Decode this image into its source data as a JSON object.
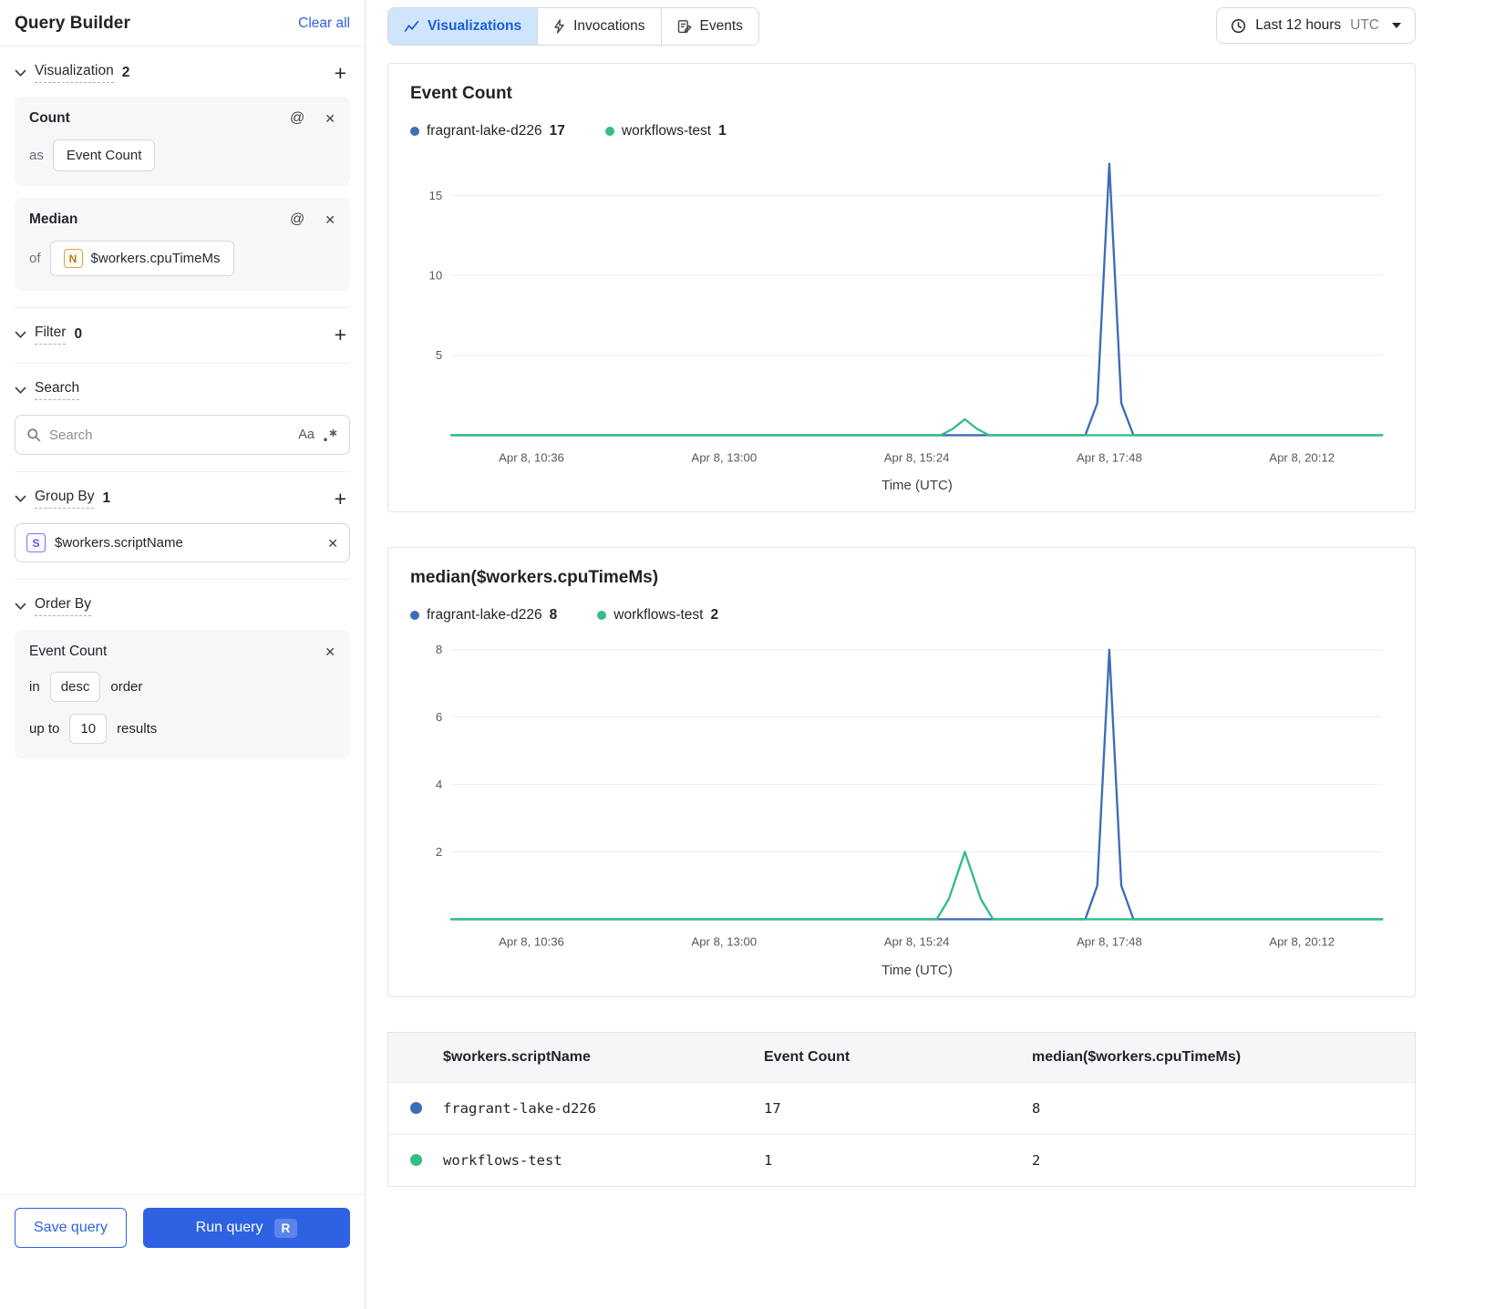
{
  "sidebar": {
    "title": "Query Builder",
    "clear_all": "Clear all",
    "sections": {
      "visualization": {
        "label": "Visualization",
        "count": "2"
      },
      "filter": {
        "label": "Filter",
        "count": "0"
      },
      "search": {
        "label": "Search"
      },
      "group_by": {
        "label": "Group By",
        "count": "1"
      },
      "order_by": {
        "label": "Order By"
      }
    },
    "viz_cards": [
      {
        "title": "Count",
        "prefix": "as",
        "value": "Event Count"
      },
      {
        "title": "Median",
        "prefix": "of",
        "badge": "N",
        "value": "$workers.cpuTimeMs"
      }
    ],
    "search_input": {
      "placeholder": "Search",
      "case_toggle": "Aa"
    },
    "group_item": {
      "badge": "S",
      "value": "$workers.scriptName"
    },
    "order_card": {
      "title": "Event Count",
      "in_label": "in",
      "direction": "desc",
      "order_label": "order",
      "upto_label": "up to",
      "limit": "10",
      "results_label": "results"
    },
    "save_label": "Save query",
    "run_label": "Run query",
    "run_shortcut": "R"
  },
  "tabs": [
    {
      "label": "Visualizations",
      "active": true
    },
    {
      "label": "Invocations",
      "active": false
    },
    {
      "label": "Events",
      "active": false
    }
  ],
  "time_range": {
    "label": "Last 12 hours",
    "zone": "UTC"
  },
  "chart_data": [
    {
      "type": "line",
      "title": "Event Count",
      "xlabel": "Time (UTC)",
      "xlim": [
        9.6,
        21.2
      ],
      "ylim": [
        0,
        17.5
      ],
      "y_ticks": [
        5,
        10,
        15
      ],
      "x_ticks": [
        {
          "v": 10.6,
          "label": "Apr 8, 10:36"
        },
        {
          "v": 13.0,
          "label": "Apr 8, 13:00"
        },
        {
          "v": 15.4,
          "label": "Apr 8, 15:24"
        },
        {
          "v": 17.8,
          "label": "Apr 8, 17:48"
        },
        {
          "v": 20.2,
          "label": "Apr 8, 20:12"
        }
      ],
      "legend": [
        {
          "name": "fragrant-lake-d226",
          "value": 17,
          "color": "#3D6DB5"
        },
        {
          "name": "workflows-test",
          "value": 1,
          "color": "#34BD85"
        }
      ],
      "series": [
        {
          "name": "fragrant-lake-d226",
          "color": "#3D6DB5",
          "points": [
            [
              9.6,
              0
            ],
            [
              17.5,
              0
            ],
            [
              17.65,
              2
            ],
            [
              17.8,
              17
            ],
            [
              17.95,
              2
            ],
            [
              18.1,
              0
            ],
            [
              21.2,
              0
            ]
          ]
        },
        {
          "name": "workflows-test",
          "color": "#34BD85",
          "points": [
            [
              9.6,
              0
            ],
            [
              15.7,
              0
            ],
            [
              15.85,
              0.4
            ],
            [
              16.0,
              1
            ],
            [
              16.15,
              0.4
            ],
            [
              16.3,
              0
            ],
            [
              21.2,
              0
            ]
          ]
        }
      ]
    },
    {
      "type": "line",
      "title": "median($workers.cpuTimeMs)",
      "xlabel": "Time (UTC)",
      "xlim": [
        9.6,
        21.2
      ],
      "ylim": [
        0,
        8.3
      ],
      "y_ticks": [
        2,
        4,
        6,
        8
      ],
      "x_ticks": [
        {
          "v": 10.6,
          "label": "Apr 8, 10:36"
        },
        {
          "v": 13.0,
          "label": "Apr 8, 13:00"
        },
        {
          "v": 15.4,
          "label": "Apr 8, 15:24"
        },
        {
          "v": 17.8,
          "label": "Apr 8, 17:48"
        },
        {
          "v": 20.2,
          "label": "Apr 8, 20:12"
        }
      ],
      "legend": [
        {
          "name": "fragrant-lake-d226",
          "value": 8,
          "color": "#3D6DB5"
        },
        {
          "name": "workflows-test",
          "value": 2,
          "color": "#34BD85"
        }
      ],
      "series": [
        {
          "name": "fragrant-lake-d226",
          "color": "#3D6DB5",
          "points": [
            [
              9.6,
              0
            ],
            [
              17.5,
              0
            ],
            [
              17.65,
              1
            ],
            [
              17.8,
              8
            ],
            [
              17.95,
              1
            ],
            [
              18.1,
              0
            ],
            [
              21.2,
              0
            ]
          ]
        },
        {
          "name": "workflows-test",
          "color": "#34BD85",
          "points": [
            [
              9.6,
              0
            ],
            [
              15.65,
              0
            ],
            [
              15.8,
              0.6
            ],
            [
              16.0,
              2
            ],
            [
              16.2,
              0.6
            ],
            [
              16.35,
              0
            ],
            [
              21.2,
              0
            ]
          ]
        }
      ]
    }
  ],
  "table": {
    "headers": [
      "$workers.scriptName",
      "Event Count",
      "median($workers.cpuTimeMs)"
    ],
    "rows": [
      {
        "color": "#3D6DB5",
        "name": "fragrant-lake-d226",
        "values": [
          "17",
          "8"
        ]
      },
      {
        "color": "#34BD85",
        "name": "workflows-test",
        "values": [
          "1",
          "2"
        ]
      }
    ]
  },
  "colors": {
    "accent": "#2F62E3",
    "series_blue": "#3D6DB5",
    "series_green": "#34BD85"
  }
}
